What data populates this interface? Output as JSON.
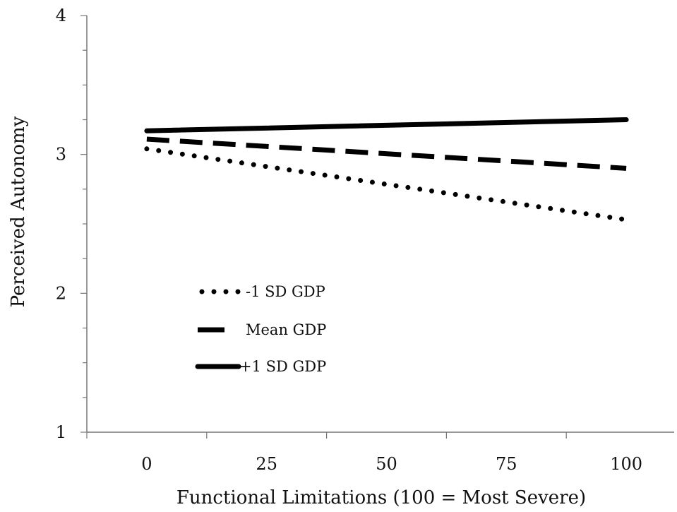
{
  "chart_data": {
    "type": "line",
    "title": "",
    "xlabel": "Functional Limitations (100 = Most Severe)",
    "ylabel": "Perceived Autonomy",
    "x": [
      0,
      100
    ],
    "xticks": [
      0,
      25,
      50,
      75,
      100
    ],
    "xlim": [
      -12.5,
      112.5
    ],
    "ylim": [
      1,
      4
    ],
    "yticks": [
      1,
      2,
      3,
      4
    ],
    "grid": false,
    "legend": "lower-left",
    "series": [
      {
        "name": "-1 SD GDP",
        "style": "dotted",
        "values": [
          3.04,
          2.53
        ]
      },
      {
        "name": "Mean GDP",
        "style": "dashed",
        "values": [
          3.11,
          2.9
        ]
      },
      {
        "name": "+1 SD GDP",
        "style": "solid",
        "values": [
          3.17,
          3.25
        ]
      }
    ],
    "colors": {
      "line": "#000000",
      "axis": "#777777"
    }
  }
}
